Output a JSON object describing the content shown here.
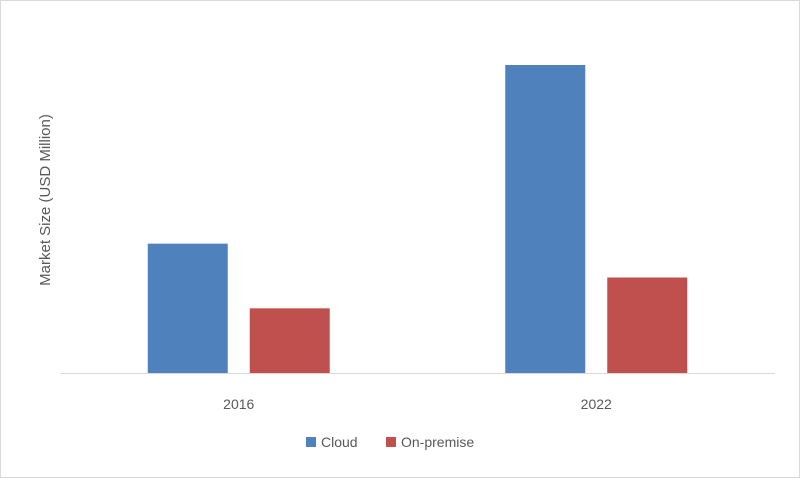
{
  "chart_data": {
    "type": "bar",
    "title": "",
    "xlabel": "",
    "ylabel": "Market Size (USD Million)",
    "categories": [
      "2016",
      "2022"
    ],
    "series": [
      {
        "name": "Cloud",
        "color": "#4f81bd",
        "values": [
          42,
          100
        ]
      },
      {
        "name": "On-premise",
        "color": "#c0504d",
        "values": [
          21,
          31
        ]
      }
    ],
    "ylim": [
      0,
      100
    ],
    "grid": false,
    "legend": "bottom"
  }
}
